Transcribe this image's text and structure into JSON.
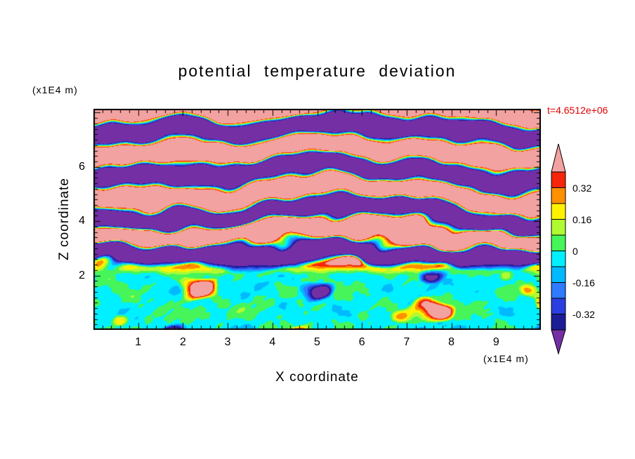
{
  "chart_data": {
    "type": "heatmap",
    "title": "potential temperature deviation",
    "time_label": "t=4.6512e+06",
    "time_color": "#e00000",
    "xlabel": "X coordinate",
    "x_unit": "(x1E4 m)",
    "ylabel": "Z coordinate",
    "y_unit": "(x1E4 m)",
    "x_range": [
      0,
      10
    ],
    "z_range": [
      0,
      8.14
    ],
    "grid": false,
    "x_tick_labels": [
      {
        "value": 1,
        "text": "1"
      },
      {
        "value": 2,
        "text": "2"
      },
      {
        "value": 3,
        "text": "3"
      },
      {
        "value": 4,
        "text": "4"
      },
      {
        "value": 5,
        "text": "5"
      },
      {
        "value": 6,
        "text": "6"
      },
      {
        "value": 7,
        "text": "7"
      },
      {
        "value": 8,
        "text": "8"
      },
      {
        "value": 9,
        "text": "9"
      }
    ],
    "z_tick_labels": [
      {
        "value": 2,
        "text": "2"
      },
      {
        "value": 4,
        "text": "4"
      },
      {
        "value": 6,
        "text": "6"
      }
    ],
    "colorbar": {
      "position": "right",
      "levels": [
        -0.4,
        -0.32,
        -0.24,
        -0.16,
        -0.08,
        0,
        0.08,
        0.16,
        0.24,
        0.32,
        0.4
      ],
      "labels": [
        {
          "value": 0.32,
          "text": "0.32"
        },
        {
          "value": 0.16,
          "text": "0.16"
        },
        {
          "value": 0,
          "text": "0"
        },
        {
          "value": -0.16,
          "text": "-0.16"
        },
        {
          "value": -0.32,
          "text": "-0.32"
        }
      ],
      "colors_low_to_high": [
        "#742fa5",
        "#1c1d96",
        "#2b3fe0",
        "#2e7bff",
        "#00baff",
        "#00f0ff",
        "#46f55a",
        "#b0fa32",
        "#fff200",
        "#ff9000",
        "#f5260a",
        "#f2a2a0"
      ]
    },
    "field_description": "Filled contour field of potential temperature deviation: wavy stratified layers alternating above +0.4 (pink) and below -0.4 (purple) in the upper half with thin rainbow interfaces, and a turbulent convective region near zero (green/cyan cells) below z=2 with warm plumes (yellow/orange/red) and cold pockets (blue/navy)."
  }
}
